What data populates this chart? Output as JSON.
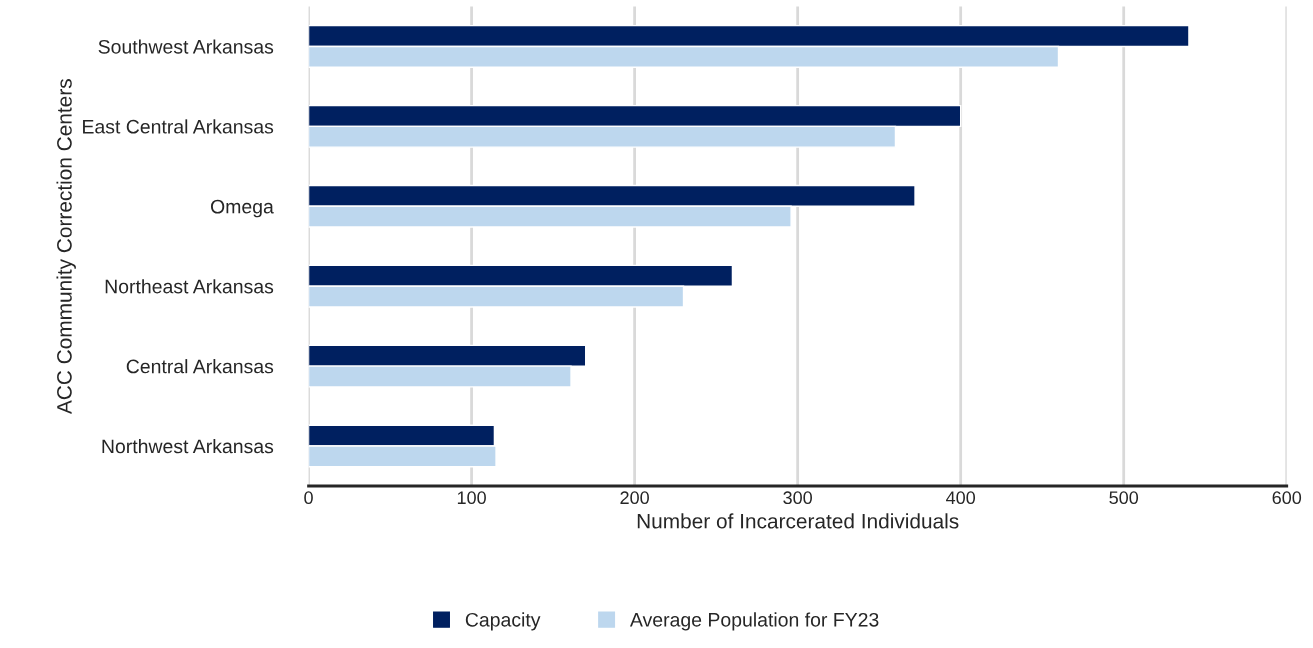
{
  "chart_data": {
    "type": "bar",
    "orientation": "horizontal",
    "xlabel": "Number of Incarcerated Individuals",
    "ylabel": "ACC Community Correction Centers",
    "categories": [
      "Southwest Arkansas",
      "East Central Arkansas",
      "Omega",
      "Northeast Arkansas",
      "Central Arkansas",
      "Northwest Arkansas"
    ],
    "series": [
      {
        "name": "Capacity",
        "color": "#002060",
        "values": [
          540,
          400,
          372,
          260,
          170,
          114
        ]
      },
      {
        "name": "Average Population for FY23",
        "color": "#bdd7ee",
        "values": [
          460,
          360,
          296,
          230,
          161,
          115
        ]
      }
    ],
    "xlim": [
      0,
      600
    ],
    "xticks": [
      0,
      100,
      200,
      300,
      400,
      500,
      600
    ],
    "grid": "x",
    "legend": "bottom"
  }
}
